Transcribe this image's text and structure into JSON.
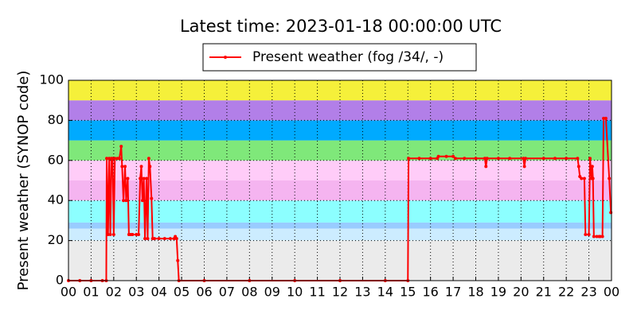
{
  "chart_data": {
    "type": "line",
    "title": "Latest time: 2023-01-18 00:00:00 UTC",
    "y_label": "Present weather (SYNOP code)",
    "grid": true,
    "xlim": [
      0,
      24
    ],
    "ylim": [
      0,
      100
    ],
    "yticks": [
      0,
      20,
      40,
      60,
      80,
      100
    ],
    "xticks": [
      {
        "value": 0,
        "label": "00"
      },
      {
        "value": 1,
        "label": "01"
      },
      {
        "value": 2,
        "label": "02"
      },
      {
        "value": 3,
        "label": "03"
      },
      {
        "value": 4,
        "label": "04"
      },
      {
        "value": 5,
        "label": "05"
      },
      {
        "value": 6,
        "label": "06"
      },
      {
        "value": 7,
        "label": "07"
      },
      {
        "value": 8,
        "label": "08"
      },
      {
        "value": 9,
        "label": "09"
      },
      {
        "value": 10,
        "label": "10"
      },
      {
        "value": 11,
        "label": "11"
      },
      {
        "value": 12,
        "label": "12"
      },
      {
        "value": 13,
        "label": "13"
      },
      {
        "value": 14,
        "label": "14"
      },
      {
        "value": 15,
        "label": "15"
      },
      {
        "value": 16,
        "label": "16"
      },
      {
        "value": 17,
        "label": "17"
      },
      {
        "value": 18,
        "label": "18"
      },
      {
        "value": 19,
        "label": "19"
      },
      {
        "value": 20,
        "label": "20"
      },
      {
        "value": 21,
        "label": "21"
      },
      {
        "value": 22,
        "label": "22"
      },
      {
        "value": 23,
        "label": "23"
      },
      {
        "value": 24,
        "label": "00"
      }
    ],
    "bands": [
      {
        "from": 0,
        "to": 20,
        "color": "#ebebeb"
      },
      {
        "from": 20,
        "to": 26,
        "color": "#ccecff"
      },
      {
        "from": 26,
        "to": 29,
        "color": "#99ccff"
      },
      {
        "from": 29,
        "to": 40,
        "color": "#8cffff"
      },
      {
        "from": 40,
        "to": 50,
        "color": "#f5b4f0"
      },
      {
        "from": 50,
        "to": 60,
        "color": "#ffccf8"
      },
      {
        "from": 60,
        "to": 70,
        "color": "#7fe87a"
      },
      {
        "from": 70,
        "to": 80,
        "color": "#00aaff"
      },
      {
        "from": 80,
        "to": 90,
        "color": "#b27fe8"
      },
      {
        "from": 90,
        "to": 100,
        "color": "#f5f03a"
      }
    ],
    "x": [
      0,
      0.5,
      1,
      1.5,
      1.67,
      1.69,
      1.75,
      1.8,
      1.85,
      1.9,
      1.95,
      2.0,
      2.05,
      2.17,
      2.25,
      2.33,
      2.37,
      2.43,
      2.5,
      2.55,
      2.62,
      2.67,
      2.75,
      2.83,
      3.0,
      3.1,
      3.17,
      3.22,
      3.27,
      3.33,
      3.38,
      3.45,
      3.5,
      3.55,
      3.6,
      3.67,
      3.72,
      3.8,
      4.0,
      4.25,
      4.5,
      4.67,
      4.72,
      4.78,
      4.83,
      4.88,
      6,
      8,
      10,
      12,
      14,
      15.0,
      15.03,
      15.5,
      16.0,
      16.3,
      16.35,
      16.7,
      17.0,
      17.1,
      17.5,
      18.0,
      18.4,
      18.45,
      18.5,
      19,
      19.5,
      20.1,
      20.15,
      20.2,
      21,
      21.5,
      22,
      22.5,
      22.55,
      22.6,
      22.67,
      22.8,
      22.85,
      23.0,
      23.05,
      23.08,
      23.12,
      23.15,
      23.18,
      23.22,
      23.35,
      23.45,
      23.5,
      23.6,
      23.65,
      23.75,
      23.9,
      23.97
    ],
    "series": [
      {
        "name": "Present weather (fog /34/, -)",
        "color": "#ff0000",
        "values": [
          0,
          0,
          0,
          0,
          0,
          61,
          23,
          61,
          23,
          61,
          61,
          23,
          61,
          61,
          61,
          67,
          57,
          40,
          57,
          40,
          51,
          23,
          23,
          23,
          23,
          23,
          51,
          57,
          40,
          51,
          21,
          51,
          21,
          61,
          57,
          41,
          21,
          21,
          21,
          21,
          21,
          21,
          22,
          21,
          10,
          0,
          0,
          0,
          0,
          0,
          0,
          0,
          61,
          61,
          61,
          61,
          62,
          62,
          62,
          61,
          61,
          61,
          61,
          57,
          61,
          61,
          61,
          61,
          57,
          61,
          61,
          61,
          61,
          61,
          57,
          52,
          51,
          51,
          23,
          23,
          61,
          57,
          51,
          57,
          51,
          22,
          22,
          22,
          22,
          22,
          81,
          81,
          51,
          34
        ]
      }
    ]
  }
}
